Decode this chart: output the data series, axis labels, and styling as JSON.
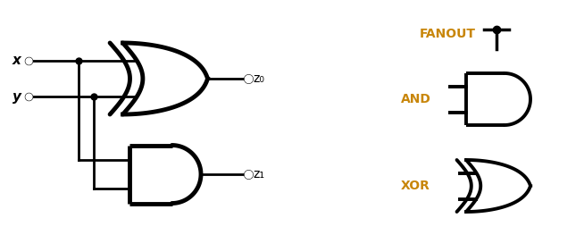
{
  "bg_color": "#ffffff",
  "line_color": "#000000",
  "lw_main": 3.5,
  "lw_legend": 2.8,
  "lw_wire": 2.0,
  "label_color": "#c8860a",
  "fanout_label": "FANOUT",
  "and_label": "AND",
  "xor_label": "XOR",
  "x_label": "x",
  "y_label": "y",
  "z0_label": "z₀",
  "z1_label": "z₁",
  "figsize": [
    6.54,
    2.63
  ],
  "dpi": 100
}
